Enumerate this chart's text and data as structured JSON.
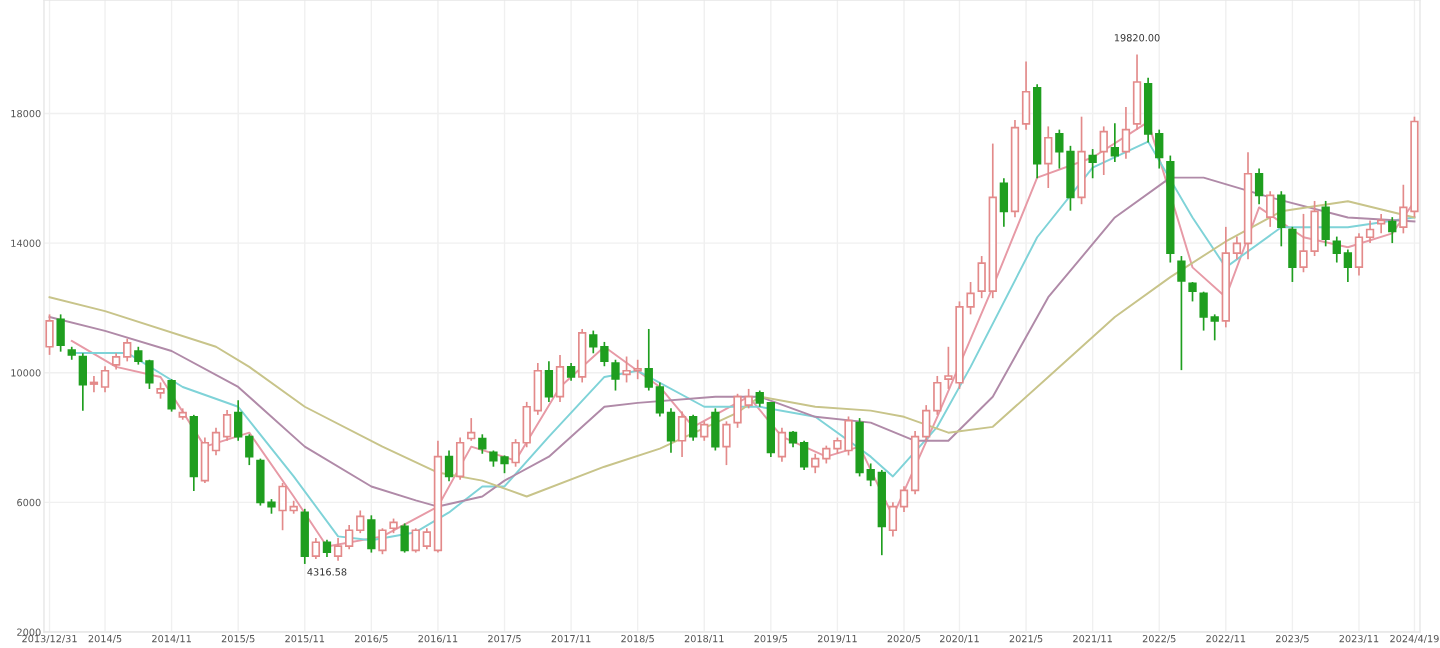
{
  "chart_data": {
    "type": "candlestick",
    "categories": [
      "2013/12/31",
      null,
      null,
      null,
      null,
      "2014/5",
      null,
      null,
      null,
      null,
      null,
      "2014/11",
      null,
      null,
      null,
      null,
      null,
      "2015/5",
      null,
      null,
      null,
      null,
      null,
      "2015/11",
      null,
      null,
      null,
      null,
      null,
      "2016/5",
      null,
      null,
      null,
      null,
      null,
      "2016/11",
      null,
      null,
      null,
      null,
      null,
      "2017/5",
      null,
      null,
      null,
      null,
      null,
      "2017/11",
      null,
      null,
      null,
      null,
      null,
      "2018/5",
      null,
      null,
      null,
      null,
      null,
      "2018/11",
      null,
      null,
      null,
      null,
      null,
      "2019/5",
      null,
      null,
      null,
      null,
      null,
      "2019/11",
      null,
      null,
      null,
      null,
      null,
      "2020/5",
      null,
      null,
      null,
      null,
      "2020/11",
      null,
      null,
      null,
      null,
      null,
      "2021/5",
      null,
      null,
      null,
      null,
      null,
      "2021/11",
      null,
      null,
      null,
      null,
      null,
      "2022/5",
      null,
      null,
      null,
      null,
      null,
      "2022/11",
      null,
      null,
      null,
      null,
      null,
      "2023/5",
      null,
      null,
      null,
      null,
      null,
      "2023/11",
      null,
      null,
      null,
      null,
      "2024/4/19"
    ],
    "ohlc": [
      [
        10800,
        11800,
        10550,
        11600
      ],
      [
        11650,
        11800,
        10650,
        10850
      ],
      [
        10700,
        10800,
        10400,
        10550
      ],
      [
        10500,
        10600,
        8830,
        9630
      ],
      [
        9650,
        9900,
        9400,
        9700
      ],
      [
        9560,
        10200,
        9400,
        10060
      ],
      [
        10240,
        10600,
        10100,
        10490
      ],
      [
        10490,
        11050,
        10350,
        10920
      ],
      [
        10670,
        10800,
        10250,
        10360
      ],
      [
        10360,
        10400,
        9500,
        9690
      ],
      [
        9380,
        9700,
        9200,
        9500
      ],
      [
        9750,
        9800,
        8800,
        8890
      ],
      [
        8640,
        8900,
        8550,
        8770
      ],
      [
        8640,
        8700,
        6350,
        6800
      ],
      [
        6670,
        8000,
        6600,
        7840
      ],
      [
        7600,
        8300,
        7450,
        8150
      ],
      [
        8030,
        8850,
        7900,
        8700
      ],
      [
        8770,
        9150,
        7900,
        8030
      ],
      [
        8030,
        8100,
        7150,
        7410
      ],
      [
        7290,
        7350,
        5900,
        6000
      ],
      [
        6000,
        6100,
        5650,
        5870
      ],
      [
        5750,
        6600,
        5140,
        6490
      ],
      [
        5750,
        6050,
        5650,
        5870
      ],
      [
        5690,
        5800,
        4100,
        4340
      ],
      [
        4340,
        4900,
        4250,
        4770
      ],
      [
        4770,
        4850,
        4316.58,
        4460
      ],
      [
        4340,
        4900,
        4200,
        4650
      ],
      [
        4650,
        5300,
        4550,
        5140
      ],
      [
        5140,
        5750,
        5050,
        5570
      ],
      [
        5450,
        5600,
        4450,
        4580
      ],
      [
        4520,
        5200,
        4400,
        5140
      ],
      [
        5200,
        5500,
        5050,
        5380
      ],
      [
        5260,
        5350,
        4450,
        4520
      ],
      [
        4520,
        5200,
        4450,
        5140
      ],
      [
        4650,
        5200,
        4550,
        5080
      ],
      [
        4520,
        7900,
        4450,
        7410
      ],
      [
        7410,
        7600,
        6650,
        6800
      ],
      [
        6800,
        8000,
        6700,
        7840
      ],
      [
        7970,
        8600,
        7900,
        8150
      ],
      [
        7970,
        8100,
        7500,
        7660
      ],
      [
        7540,
        7600,
        7100,
        7290
      ],
      [
        7400,
        7450,
        6900,
        7200
      ],
      [
        7230,
        7950,
        7100,
        7840
      ],
      [
        7840,
        9100,
        7700,
        8950
      ],
      [
        8830,
        10300,
        8700,
        10060
      ],
      [
        10060,
        10350,
        9100,
        9260
      ],
      [
        9260,
        10550,
        9100,
        10180
      ],
      [
        10180,
        10300,
        9750,
        9870
      ],
      [
        9870,
        11350,
        9700,
        11230
      ],
      [
        11160,
        11300,
        10600,
        10800
      ],
      [
        10800,
        10950,
        10200,
        10360
      ],
      [
        10300,
        10400,
        9450,
        9810
      ],
      [
        9950,
        10500,
        9700,
        10060
      ],
      [
        10060,
        10400,
        9800,
        10120
      ],
      [
        10120,
        11350,
        9450,
        9560
      ],
      [
        9560,
        9700,
        8650,
        8770
      ],
      [
        8770,
        8900,
        7530,
        7900
      ],
      [
        7900,
        8800,
        7400,
        8640
      ],
      [
        8640,
        8700,
        7900,
        8030
      ],
      [
        8030,
        8500,
        7900,
        8400
      ],
      [
        8770,
        8900,
        7600,
        7720
      ],
      [
        7720,
        8500,
        7150,
        8400
      ],
      [
        8460,
        9350,
        8300,
        9260
      ],
      [
        9000,
        9500,
        8900,
        9260
      ],
      [
        9380,
        9450,
        8950,
        9070
      ],
      [
        9070,
        9100,
        7400,
        7540
      ],
      [
        7410,
        8300,
        7250,
        8150
      ],
      [
        8150,
        8200,
        7700,
        7840
      ],
      [
        7840,
        7900,
        7000,
        7100
      ],
      [
        7100,
        7500,
        6900,
        7350
      ],
      [
        7350,
        7750,
        7200,
        7660
      ],
      [
        7660,
        8000,
        7500,
        7900
      ],
      [
        7600,
        8650,
        7450,
        8520
      ],
      [
        8460,
        8600,
        6800,
        6920
      ],
      [
        7000,
        7200,
        6500,
        6700
      ],
      [
        6920,
        7000,
        4370,
        5260
      ],
      [
        5140,
        6000,
        4950,
        5870
      ],
      [
        5870,
        6500,
        5700,
        6370
      ],
      [
        6370,
        8200,
        6250,
        8030
      ],
      [
        8030,
        9000,
        7900,
        8830
      ],
      [
        8830,
        9900,
        8700,
        9690
      ],
      [
        9800,
        10800,
        9500,
        9900
      ],
      [
        9690,
        12200,
        9500,
        12030
      ],
      [
        12030,
        12800,
        11800,
        12450
      ],
      [
        12520,
        13600,
        12300,
        13380
      ],
      [
        12520,
        17070,
        12300,
        15410
      ],
      [
        15840,
        16000,
        14500,
        14980
      ],
      [
        14980,
        17800,
        14800,
        17560
      ],
      [
        17680,
        19600,
        17500,
        18670
      ],
      [
        18790,
        18900,
        16000,
        16450
      ],
      [
        16450,
        17600,
        15700,
        17250
      ],
      [
        17370,
        17500,
        16300,
        16820
      ],
      [
        16820,
        17000,
        15000,
        15410
      ],
      [
        15410,
        17900,
        15200,
        16820
      ],
      [
        16700,
        16900,
        16000,
        16500
      ],
      [
        16820,
        17600,
        16100,
        17440
      ],
      [
        16940,
        17700,
        16500,
        16700
      ],
      [
        16820,
        18200,
        16600,
        17500
      ],
      [
        17680,
        19820,
        17500,
        18970
      ],
      [
        18910,
        19100,
        17100,
        17370
      ],
      [
        17370,
        17500,
        16300,
        16640
      ],
      [
        16510,
        16700,
        13400,
        13690
      ],
      [
        13440,
        13600,
        10080,
        12830
      ],
      [
        12760,
        12800,
        12200,
        12520
      ],
      [
        12450,
        12500,
        11300,
        11720
      ],
      [
        11720,
        11800,
        11000,
        11600
      ],
      [
        11600,
        14500,
        11400,
        13690
      ],
      [
        13690,
        14200,
        13500,
        13990
      ],
      [
        13990,
        16800,
        13500,
        16140
      ],
      [
        16140,
        16300,
        15200,
        15470
      ],
      [
        14800,
        15600,
        14500,
        15470
      ],
      [
        15470,
        15600,
        13900,
        14490
      ],
      [
        14420,
        14500,
        12800,
        13260
      ],
      [
        13260,
        14900,
        13100,
        13750
      ],
      [
        13750,
        15300,
        13600,
        14980
      ],
      [
        15100,
        15300,
        13900,
        14120
      ],
      [
        14050,
        14200,
        13400,
        13690
      ],
      [
        13690,
        13800,
        12800,
        13260
      ],
      [
        13260,
        14300,
        13000,
        14180
      ],
      [
        14180,
        14700,
        14000,
        14420
      ],
      [
        14600,
        14900,
        14300,
        14700
      ],
      [
        14660,
        14800,
        14000,
        14360
      ],
      [
        14490,
        15800,
        14300,
        15100
      ],
      [
        14980,
        17900,
        14800,
        17750
      ]
    ],
    "colors": [
      "#e38a8a",
      "#1f9e1f",
      "#1f9e1f",
      "#1f9e1f",
      "#e38a8a",
      "#e38a8a",
      "#e38a8a",
      "#e38a8a",
      "#1f9e1f",
      "#1f9e1f",
      "#e38a8a",
      "#1f9e1f",
      "#e38a8a",
      "#1f9e1f",
      "#e38a8a",
      "#e38a8a",
      "#e38a8a",
      "#1f9e1f",
      "#1f9e1f",
      "#1f9e1f",
      "#1f9e1f",
      "#e38a8a",
      "#e38a8a",
      "#1f9e1f",
      "#e38a8a",
      "#1f9e1f",
      "#e38a8a",
      "#e38a8a",
      "#e38a8a",
      "#1f9e1f",
      "#e38a8a",
      "#e38a8a",
      "#1f9e1f",
      "#e38a8a",
      "#e38a8a",
      "#e38a8a",
      "#1f9e1f",
      "#e38a8a",
      "#e38a8a",
      "#1f9e1f",
      "#1f9e1f",
      "#1f9e1f",
      "#e38a8a",
      "#e38a8a",
      "#e38a8a",
      "#1f9e1f",
      "#e38a8a",
      "#1f9e1f",
      "#e38a8a",
      "#1f9e1f",
      "#1f9e1f",
      "#1f9e1f",
      "#e38a8a",
      "#e38a8a",
      "#1f9e1f",
      "#1f9e1f",
      "#1f9e1f",
      "#e38a8a",
      "#1f9e1f",
      "#e38a8a",
      "#1f9e1f",
      "#e38a8a",
      "#e38a8a",
      "#e38a8a",
      "#1f9e1f",
      "#1f9e1f",
      "#e38a8a",
      "#1f9e1f",
      "#1f9e1f",
      "#e38a8a",
      "#e38a8a",
      "#e38a8a",
      "#e38a8a",
      "#1f9e1f",
      "#1f9e1f",
      "#1f9e1f",
      "#e38a8a",
      "#e38a8a",
      "#e38a8a",
      "#e38a8a",
      "#e38a8a",
      "#e38a8a",
      "#e38a8a",
      "#e38a8a",
      "#e38a8a",
      "#e38a8a",
      "#1f9e1f",
      "#e38a8a",
      "#e38a8a",
      "#1f9e1f",
      "#e38a8a",
      "#1f9e1f",
      "#1f9e1f",
      "#e38a8a",
      "#1f9e1f",
      "#e38a8a",
      "#1f9e1f",
      "#e38a8a",
      "#e38a8a",
      "#1f9e1f",
      "#1f9e1f",
      "#1f9e1f",
      "#1f9e1f",
      "#1f9e1f",
      "#1f9e1f",
      "#1f9e1f",
      "#e38a8a",
      "#e38a8a",
      "#e38a8a",
      "#1f9e1f",
      "#e38a8a",
      "#1f9e1f",
      "#1f9e1f",
      "#e38a8a",
      "#e38a8a",
      "#1f9e1f",
      "#1f9e1f",
      "#1f9e1f",
      "#e38a8a",
      "#e38a8a",
      "#e38a8a",
      "#1f9e1f",
      "#e38a8a",
      "#e38a8a"
    ],
    "series": [
      {
        "type": "line",
        "color": "#e79aa6",
        "values": [
          null,
          null,
          10980,
          null,
          null,
          null,
          10180,
          null,
          null,
          null,
          9870,
          null,
          null,
          null,
          7720,
          null,
          null,
          null,
          8150,
          null,
          null,
          null,
          6180,
          null,
          null,
          4640,
          null,
          null,
          null,
          null,
          4950,
          null,
          null,
          null,
          null,
          5870,
          null,
          null,
          7720,
          null,
          null,
          null,
          7290,
          null,
          null,
          null,
          9560,
          null,
          null,
          null,
          10800,
          null,
          null,
          null,
          null,
          9560,
          null,
          null,
          8330,
          null,
          null,
          null,
          null,
          9260,
          null,
          null,
          8030,
          null,
          null,
          null,
          7410,
          null,
          null,
          7720,
          null,
          null,
          5570,
          null,
          null,
          null,
          8640,
          null,
          null,
          null,
          null,
          12640,
          null,
          null,
          null,
          16020,
          null,
          null,
          null,
          null,
          16640,
          null,
          null,
          null,
          null,
          17740,
          null,
          null,
          null,
          13250,
          null,
          null,
          12330,
          null,
          null,
          15100,
          null,
          null,
          null,
          14180,
          null,
          null,
          null,
          13870,
          null,
          null,
          null,
          14300,
          null,
          15280
        ]
      },
      {
        "type": "line",
        "color": "#7fd3d8",
        "values": [
          null,
          null,
          10610,
          null,
          null,
          null,
          null,
          10610,
          null,
          null,
          null,
          null,
          9560,
          null,
          null,
          null,
          null,
          8950,
          null,
          null,
          null,
          null,
          6800,
          null,
          null,
          null,
          4950,
          null,
          null,
          4830,
          null,
          null,
          null,
          5080,
          null,
          null,
          5690,
          null,
          null,
          6490,
          null,
          6490,
          null,
          null,
          null,
          8030,
          null,
          null,
          null,
          null,
          9870,
          null,
          null,
          10060,
          null,
          null,
          null,
          null,
          null,
          8950,
          null,
          null,
          null,
          null,
          8950,
          null,
          null,
          null,
          null,
          8640,
          null,
          null,
          null,
          null,
          7410,
          null,
          6800,
          null,
          null,
          null,
          8330,
          null,
          null,
          10180,
          null,
          null,
          null,
          null,
          null,
          14180,
          null,
          null,
          null,
          null,
          16330,
          null,
          null,
          null,
          null,
          17130,
          null,
          null,
          null,
          14790,
          null,
          null,
          13250,
          null,
          null,
          null,
          null,
          14490,
          null,
          null,
          null,
          null,
          null,
          14490,
          null,
          null,
          null,
          null,
          null,
          14790
        ]
      },
      {
        "type": "line",
        "color": "#b08aa8",
        "values": [
          11720,
          null,
          null,
          null,
          null,
          11290,
          null,
          null,
          null,
          null,
          null,
          10670,
          null,
          null,
          null,
          null,
          null,
          9560,
          null,
          null,
          null,
          null,
          null,
          7720,
          null,
          null,
          null,
          null,
          null,
          6490,
          null,
          null,
          null,
          6060,
          null,
          5870,
          null,
          null,
          null,
          6180,
          null,
          6670,
          null,
          null,
          null,
          7410,
          null,
          null,
          null,
          null,
          8950,
          null,
          null,
          9070,
          null,
          null,
          null,
          null,
          null,
          null,
          9260,
          null,
          null,
          null,
          9260,
          null,
          null,
          null,
          null,
          8640,
          null,
          null,
          null,
          null,
          8460,
          null,
          null,
          null,
          7900,
          null,
          null,
          7900,
          null,
          null,
          null,
          9260,
          null,
          null,
          null,
          null,
          12330,
          null,
          null,
          null,
          null,
          null,
          14790,
          null,
          null,
          null,
          null,
          16020,
          null,
          null,
          16020,
          null,
          null,
          null,
          null,
          null,
          15410,
          null,
          null,
          null,
          null,
          null,
          null,
          14790,
          null,
          null,
          null,
          null,
          null,
          14670
        ]
      },
      {
        "type": "line",
        "color": "#c8c48a",
        "values": [
          12330,
          null,
          null,
          null,
          null,
          11900,
          null,
          null,
          null,
          null,
          null,
          null,
          null,
          null,
          null,
          10800,
          null,
          null,
          10180,
          null,
          null,
          null,
          null,
          8950,
          null,
          null,
          null,
          null,
          null,
          null,
          7720,
          null,
          null,
          null,
          null,
          6920,
          null,
          null,
          null,
          6670,
          null,
          null,
          null,
          6180,
          null,
          null,
          null,
          null,
          null,
          null,
          7100,
          null,
          null,
          null,
          null,
          7660,
          null,
          null,
          null,
          null,
          null,
          null,
          8770,
          null,
          9260,
          null,
          null,
          null,
          null,
          8950,
          null,
          null,
          null,
          null,
          8830,
          null,
          null,
          8640,
          null,
          null,
          null,
          8150,
          null,
          null,
          null,
          8330,
          null,
          null,
          null,
          null,
          9870,
          null,
          null,
          null,
          null,
          null,
          11720,
          null,
          null,
          null,
          null,
          12950,
          null,
          null,
          null,
          null,
          14050,
          null,
          null,
          null,
          null,
          14980,
          null,
          null,
          null,
          null,
          null,
          15290,
          null,
          null,
          null,
          null,
          null,
          14790
        ]
      }
    ],
    "ylim": [
      2000,
      21500
    ],
    "yticks": [
      2000,
      6000,
      10000,
      14000,
      18000
    ],
    "grid": true,
    "annotations": [
      {
        "text": "4316.58",
        "y": 4316.58
      },
      {
        "text": "19820.00",
        "y": 19820
      }
    ]
  }
}
